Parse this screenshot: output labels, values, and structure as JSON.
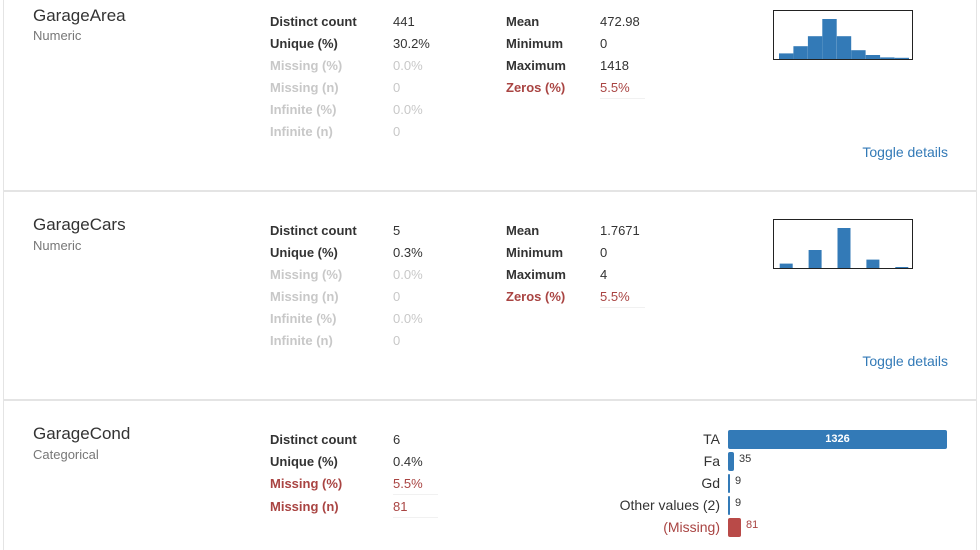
{
  "variables": [
    {
      "name": "GarageArea",
      "type": "Numeric",
      "stats_left": [
        {
          "label": "Distinct count",
          "value": "441",
          "style": "normal"
        },
        {
          "label": "Unique (%)",
          "value": "30.2%",
          "style": "normal"
        },
        {
          "label": "Missing (%)",
          "value": "0.0%",
          "style": "muted"
        },
        {
          "label": "Missing (n)",
          "value": "0",
          "style": "muted"
        },
        {
          "label": "Infinite (%)",
          "value": "0.0%",
          "style": "muted"
        },
        {
          "label": "Infinite (n)",
          "value": "0",
          "style": "muted"
        }
      ],
      "stats_right": [
        {
          "label": "Mean",
          "value": "472.98",
          "style": "normal"
        },
        {
          "label": "Minimum",
          "value": "0",
          "style": "normal"
        },
        {
          "label": "Maximum",
          "value": "1418",
          "style": "normal"
        },
        {
          "label": "Zeros (%)",
          "value": "5.5%",
          "style": "alert"
        }
      ],
      "histogram_heights": [
        0.14,
        0.32,
        0.57,
        1.0,
        0.57,
        0.22,
        0.1,
        0.04,
        0.03
      ]
    },
    {
      "name": "GarageCars",
      "type": "Numeric",
      "stats_left": [
        {
          "label": "Distinct count",
          "value": "5",
          "style": "normal"
        },
        {
          "label": "Unique (%)",
          "value": "0.3%",
          "style": "normal"
        },
        {
          "label": "Missing (%)",
          "value": "0.0%",
          "style": "muted"
        },
        {
          "label": "Missing (n)",
          "value": "0",
          "style": "muted"
        },
        {
          "label": "Infinite (%)",
          "value": "0.0%",
          "style": "muted"
        },
        {
          "label": "Infinite (n)",
          "value": "0",
          "style": "muted"
        }
      ],
      "stats_right": [
        {
          "label": "Mean",
          "value": "1.7671",
          "style": "normal"
        },
        {
          "label": "Minimum",
          "value": "0",
          "style": "normal"
        },
        {
          "label": "Maximum",
          "value": "4",
          "style": "normal"
        },
        {
          "label": "Zeros (%)",
          "value": "5.5%",
          "style": "alert"
        }
      ],
      "histogram_heights": [
        0.11,
        0,
        0.45,
        0,
        1.0,
        0,
        0.21,
        0,
        0.02
      ]
    },
    {
      "name": "GarageCond",
      "type": "Categorical",
      "stats_left": [
        {
          "label": "Distinct count",
          "value": "6",
          "style": "normal"
        },
        {
          "label": "Unique (%)",
          "value": "0.4%",
          "style": "normal"
        },
        {
          "label": "Missing (%)",
          "value": "5.5%",
          "style": "alert"
        },
        {
          "label": "Missing (n)",
          "value": "81",
          "style": "alert"
        }
      ],
      "frequencies": [
        {
          "label": "TA",
          "count": 1326,
          "display": "1326",
          "missing": false
        },
        {
          "label": "Fa",
          "count": 35,
          "display": "35",
          "missing": false
        },
        {
          "label": "Gd",
          "count": 9,
          "display": "9",
          "missing": false
        },
        {
          "label": "Other values (2)",
          "count": 9,
          "display": "9",
          "missing": false
        },
        {
          "label": "(Missing)",
          "count": 81,
          "display": "81",
          "missing": true
        }
      ]
    }
  ],
  "toggle_label": "Toggle details",
  "colors": {
    "bar": "#337ab7",
    "missing": "#a94442",
    "link": "#337ab7"
  }
}
